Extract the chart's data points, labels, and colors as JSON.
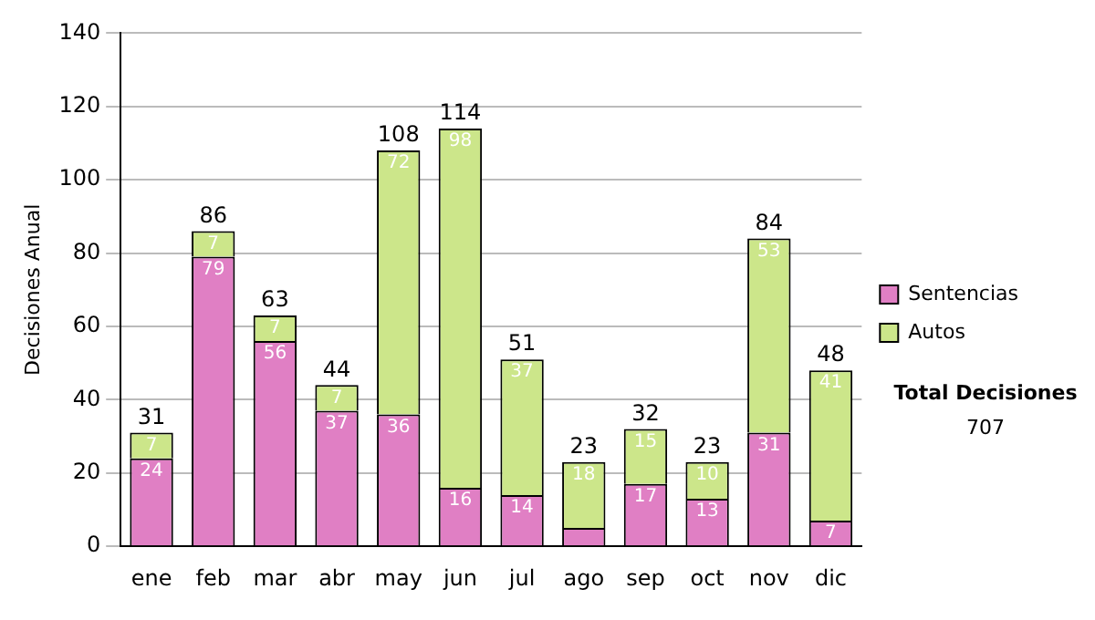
{
  "chart_data": {
    "type": "bar",
    "ylabel": "Decisiones Anual",
    "categories": [
      "ene",
      "feb",
      "mar",
      "abr",
      "may",
      "jun",
      "jul",
      "ago",
      "sep",
      "oct",
      "nov",
      "dic"
    ],
    "series": [
      {
        "name": "Sentencias",
        "color": "#e07fc4",
        "values": [
          24,
          79,
          56,
          37,
          36,
          16,
          14,
          5,
          17,
          13,
          31,
          7
        ],
        "value_labels": [
          "24",
          "79",
          "56",
          "37",
          "36",
          "16",
          "14",
          null,
          "17",
          "13",
          "31",
          "7"
        ]
      },
      {
        "name": "Autos",
        "color": "#cce68a",
        "values": [
          7,
          7,
          7,
          7,
          72,
          98,
          37,
          18,
          15,
          10,
          53,
          41
        ],
        "value_labels": [
          "7",
          "7",
          "7",
          "7",
          "72",
          "98",
          "37",
          "18",
          "15",
          "10",
          "53",
          "41"
        ]
      }
    ],
    "stacked": true,
    "totals": [
      "31",
      "86",
      "63",
      "44",
      "108",
      "114",
      "51",
      "23",
      "32",
      "23",
      "84",
      "48"
    ],
    "ylim": [
      0,
      140
    ],
    "yticks": [
      0,
      20,
      40,
      60,
      80,
      100,
      120,
      140
    ],
    "grid": "y",
    "legend": "right",
    "annotations": [
      "Total Decisiones",
      "707"
    ]
  }
}
